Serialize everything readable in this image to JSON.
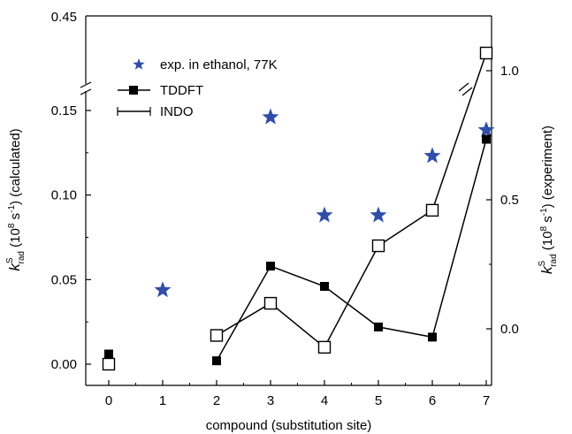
{
  "chart_data": {
    "type": "scatter",
    "xlabel": "compound (substitution site)",
    "categories": [
      "0",
      "1",
      "2",
      "3",
      "4",
      "5",
      "6",
      "7"
    ],
    "x": [
      0,
      1,
      2,
      3,
      4,
      5,
      6,
      7
    ],
    "left_axis": {
      "label_main": "k",
      "label_sup": "S",
      "label_sub": "rad",
      "label_rest": " (10",
      "label_exp": "8",
      "label_unit": " s",
      "label_unit_exp": "-1",
      "label_close": ")  (calculated)",
      "ticks": [
        "0.00",
        "0.05",
        "0.10",
        "0.15"
      ],
      "tick_values": [
        0,
        0.05,
        0.1,
        0.15
      ],
      "top_tick": "0.45",
      "ylim": [
        -0.01,
        0.45
      ],
      "broken": true
    },
    "right_axis": {
      "label_main": "k",
      "label_sup": "S",
      "label_sub": "rad",
      "label_rest": " (10",
      "label_exp": "8",
      "label_unit": " s",
      "label_unit_exp": "-1",
      "label_close": ")   (experiment)",
      "ticks": [
        "0.0",
        "0.5",
        "1.0"
      ],
      "tick_values": [
        0.0,
        0.5,
        1.0
      ],
      "ylim": [
        -0.2,
        1.2
      ]
    },
    "series": [
      {
        "name": "exp. in ethanol, 77K",
        "axis": "right",
        "marker": "star",
        "color": "#2f4ea8",
        "x": [
          1,
          3,
          4,
          5,
          6,
          7
        ],
        "values": [
          0.15,
          0.82,
          0.44,
          0.44,
          0.67,
          0.77
        ]
      },
      {
        "name": "TDDFT",
        "axis": "left",
        "marker": "filled-square",
        "color": "#000000",
        "x": [
          0,
          2,
          3,
          4,
          5,
          6,
          7
        ],
        "values": [
          0.006,
          0.002,
          0.058,
          0.046,
          0.022,
          0.016,
          0.133
        ],
        "line_from_index": 1
      },
      {
        "name": "INDO",
        "axis": "left",
        "marker": "open-square",
        "color": "#000000",
        "x": [
          0,
          2,
          3,
          4,
          5,
          6,
          7
        ],
        "values": [
          0.0,
          0.017,
          0.036,
          0.01,
          0.07,
          0.091,
          0.42
        ],
        "line_from_index": 1
      }
    ],
    "legend_position": "top-left"
  }
}
